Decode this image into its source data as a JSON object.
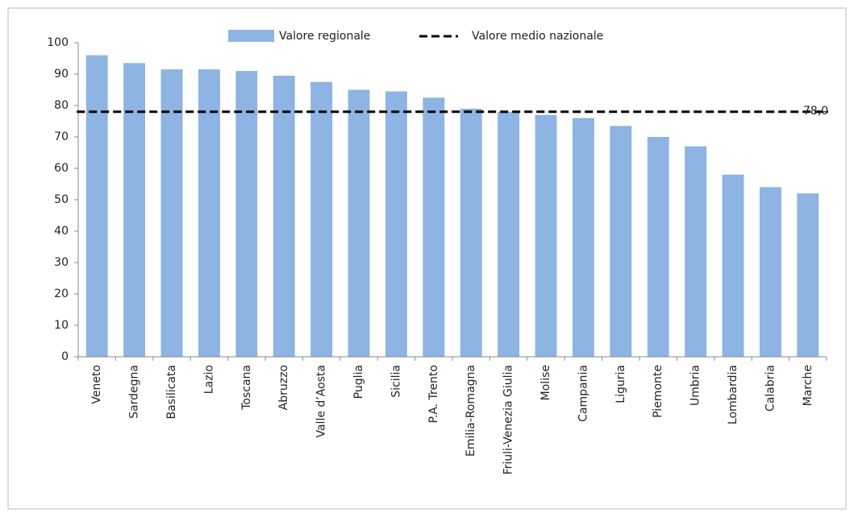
{
  "chart_data": {
    "type": "bar",
    "categories": [
      "Veneto",
      "Sardegna",
      "Basilicata",
      "Lazio",
      "Toscana",
      "Abruzzo",
      "Valle d’Aosta",
      "Puglia",
      "Sicilia",
      "P.A. Trento",
      "Emilia-Romagna",
      "Friuli-Venezia Giulia",
      "Molise",
      "Campania",
      "Liguria",
      "Piemonte",
      "Umbria",
      "Lombardia",
      "Calabria",
      "Marche"
    ],
    "series": [
      {
        "name": "Valore regionale",
        "color": "#8db4e2",
        "values": [
          96,
          93.5,
          91.5,
          91.5,
          91,
          89.5,
          87.5,
          85,
          84.5,
          82.5,
          79,
          78,
          77,
          76,
          73.5,
          70,
          67,
          58,
          54,
          52
        ]
      }
    ],
    "reference_line": {
      "name": "Valore medio nazionale",
      "value": 78,
      "label": "78,0",
      "color": "#000000"
    },
    "ylim": [
      0,
      100
    ],
    "yticks": [
      0,
      10,
      20,
      30,
      40,
      50,
      60,
      70,
      80,
      90,
      100
    ],
    "grid": false
  }
}
